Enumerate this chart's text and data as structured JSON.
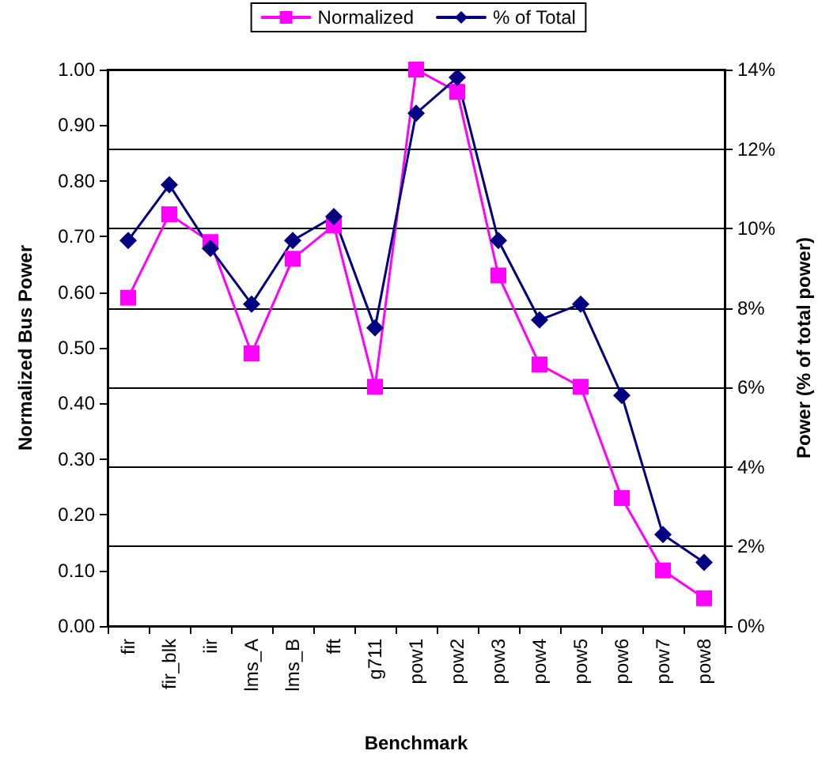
{
  "chart_data": {
    "type": "line",
    "xlabel": "Benchmark",
    "ylabel": "Normalized Bus Power",
    "y2label": "Power (% of total power)",
    "categories": [
      "fir",
      "fir_blk",
      "iir",
      "lms_A",
      "lms_B",
      "fft",
      "g711",
      "pow1",
      "pow2",
      "pow3",
      "pow4",
      "pow5",
      "pow6",
      "pow7",
      "pow8"
    ],
    "series": [
      {
        "name": "Normalized",
        "color": "#ff00ff",
        "marker": "square",
        "values": [
          0.59,
          0.74,
          0.69,
          0.49,
          0.66,
          0.72,
          0.43,
          1.0,
          0.96,
          0.63,
          0.47,
          0.43,
          0.23,
          0.1,
          0.05
        ]
      },
      {
        "name": "% of Total",
        "color": "#000080",
        "marker": "diamond",
        "axis": "y2",
        "values": [
          9.7,
          11.1,
          9.5,
          8.1,
          9.7,
          10.3,
          7.5,
          12.9,
          13.8,
          9.7,
          7.7,
          8.1,
          5.8,
          2.3,
          1.6
        ]
      }
    ],
    "ylim": [
      0,
      1
    ],
    "yticks": [
      {
        "value": 0,
        "label": "0.00"
      },
      {
        "value": 0.1,
        "label": "0.10"
      },
      {
        "value": 0.2,
        "label": "0.20"
      },
      {
        "value": 0.3,
        "label": "0.30"
      },
      {
        "value": 0.4,
        "label": "0.40"
      },
      {
        "value": 0.5,
        "label": "0.50"
      },
      {
        "value": 0.6,
        "label": "0.60"
      },
      {
        "value": 0.7,
        "label": "0.70"
      },
      {
        "value": 0.8,
        "label": "0.80"
      },
      {
        "value": 0.9,
        "label": "0.90"
      },
      {
        "value": 1,
        "label": "1.00"
      }
    ],
    "y2lim": [
      0,
      14
    ],
    "y2ticks": [
      {
        "value": 0,
        "label": "0%"
      },
      {
        "value": 2,
        "label": "2%"
      },
      {
        "value": 4,
        "label": "4%"
      },
      {
        "value": 6,
        "label": "6%"
      },
      {
        "value": 8,
        "label": "8%"
      },
      {
        "value": 10,
        "label": "10%"
      },
      {
        "value": 12,
        "label": "12%"
      },
      {
        "value": 14,
        "label": "14%"
      }
    ],
    "grid": "y2",
    "legend": "top"
  }
}
